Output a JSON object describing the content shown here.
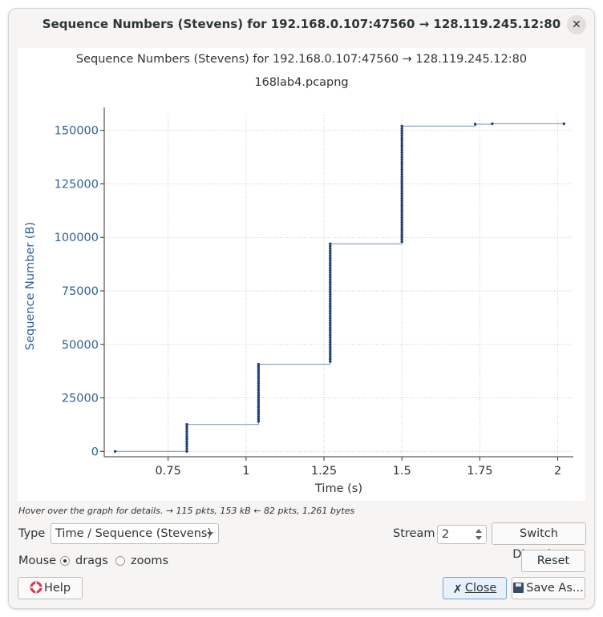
{
  "window": {
    "title": "Sequence Numbers (Stevens) for 192.168.0.107:47560 → 128.119.245.12:80"
  },
  "plot": {
    "title": "Sequence Numbers (Stevens) for 192.168.0.107:47560 → 128.119.245.12:80",
    "subtitle": "168lab4.pcapng"
  },
  "chart_data": {
    "type": "scatter",
    "title": "Sequence Numbers (Stevens) for 192.168.0.107:47560 → 128.119.245.12:80",
    "subtitle": "168lab4.pcapng",
    "xlabel": "Time (s)",
    "ylabel": "Sequence Number (B)",
    "x_ticks": [
      "0.75",
      "1",
      "1.25",
      "1.5",
      "1.75",
      "2"
    ],
    "y_ticks": [
      "0",
      "25000",
      "50000",
      "75000",
      "100000",
      "125000",
      "150000"
    ],
    "xlim": [
      0.545,
      2.05
    ],
    "ylim": [
      -2500,
      157000
    ],
    "grid": true,
    "step_line": [
      [
        0.58,
        0
      ],
      [
        0.81,
        0
      ],
      [
        0.81,
        12600
      ],
      [
        1.04,
        12600
      ],
      [
        1.04,
        40700
      ],
      [
        1.27,
        40700
      ],
      [
        1.27,
        97000
      ],
      [
        1.5,
        97000
      ],
      [
        1.5,
        152000
      ],
      [
        1.735,
        152000
      ],
      [
        1.735,
        152900
      ],
      [
        1.79,
        152900
      ],
      [
        1.79,
        153100
      ],
      [
        2.02,
        153100
      ]
    ],
    "series": [
      {
        "values": [
          [
            0.58,
            0
          ],
          [
            0.81,
            0
          ],
          [
            0.81,
            12600
          ],
          [
            1.04,
            14000
          ],
          [
            1.04,
            40700
          ],
          [
            1.27,
            42000
          ],
          [
            1.27,
            97000
          ],
          [
            1.5,
            98000
          ],
          [
            1.5,
            152000
          ],
          [
            1.735,
            152900
          ],
          [
            1.79,
            153100
          ],
          [
            2.02,
            153100
          ]
        ]
      }
    ],
    "colors": {
      "line": "#7393b8",
      "point": "#1f3f73",
      "axis_text": "#2e5f9a"
    }
  },
  "hint": "Hover over the graph for details. → 115 pkts, 153 kB ← 82 pkts, 1,261 bytes",
  "controls": {
    "type_label": "Type",
    "type_value": "Time / Sequence (Stevens)",
    "stream_label": "Stream",
    "stream_value": "2",
    "switch_direction": "Switch Direction",
    "mouse_label": "Mouse",
    "drags": "drags",
    "zooms": "zooms",
    "reset": "Reset",
    "help": "Help",
    "close": "Close",
    "save_as": "Save As..."
  }
}
